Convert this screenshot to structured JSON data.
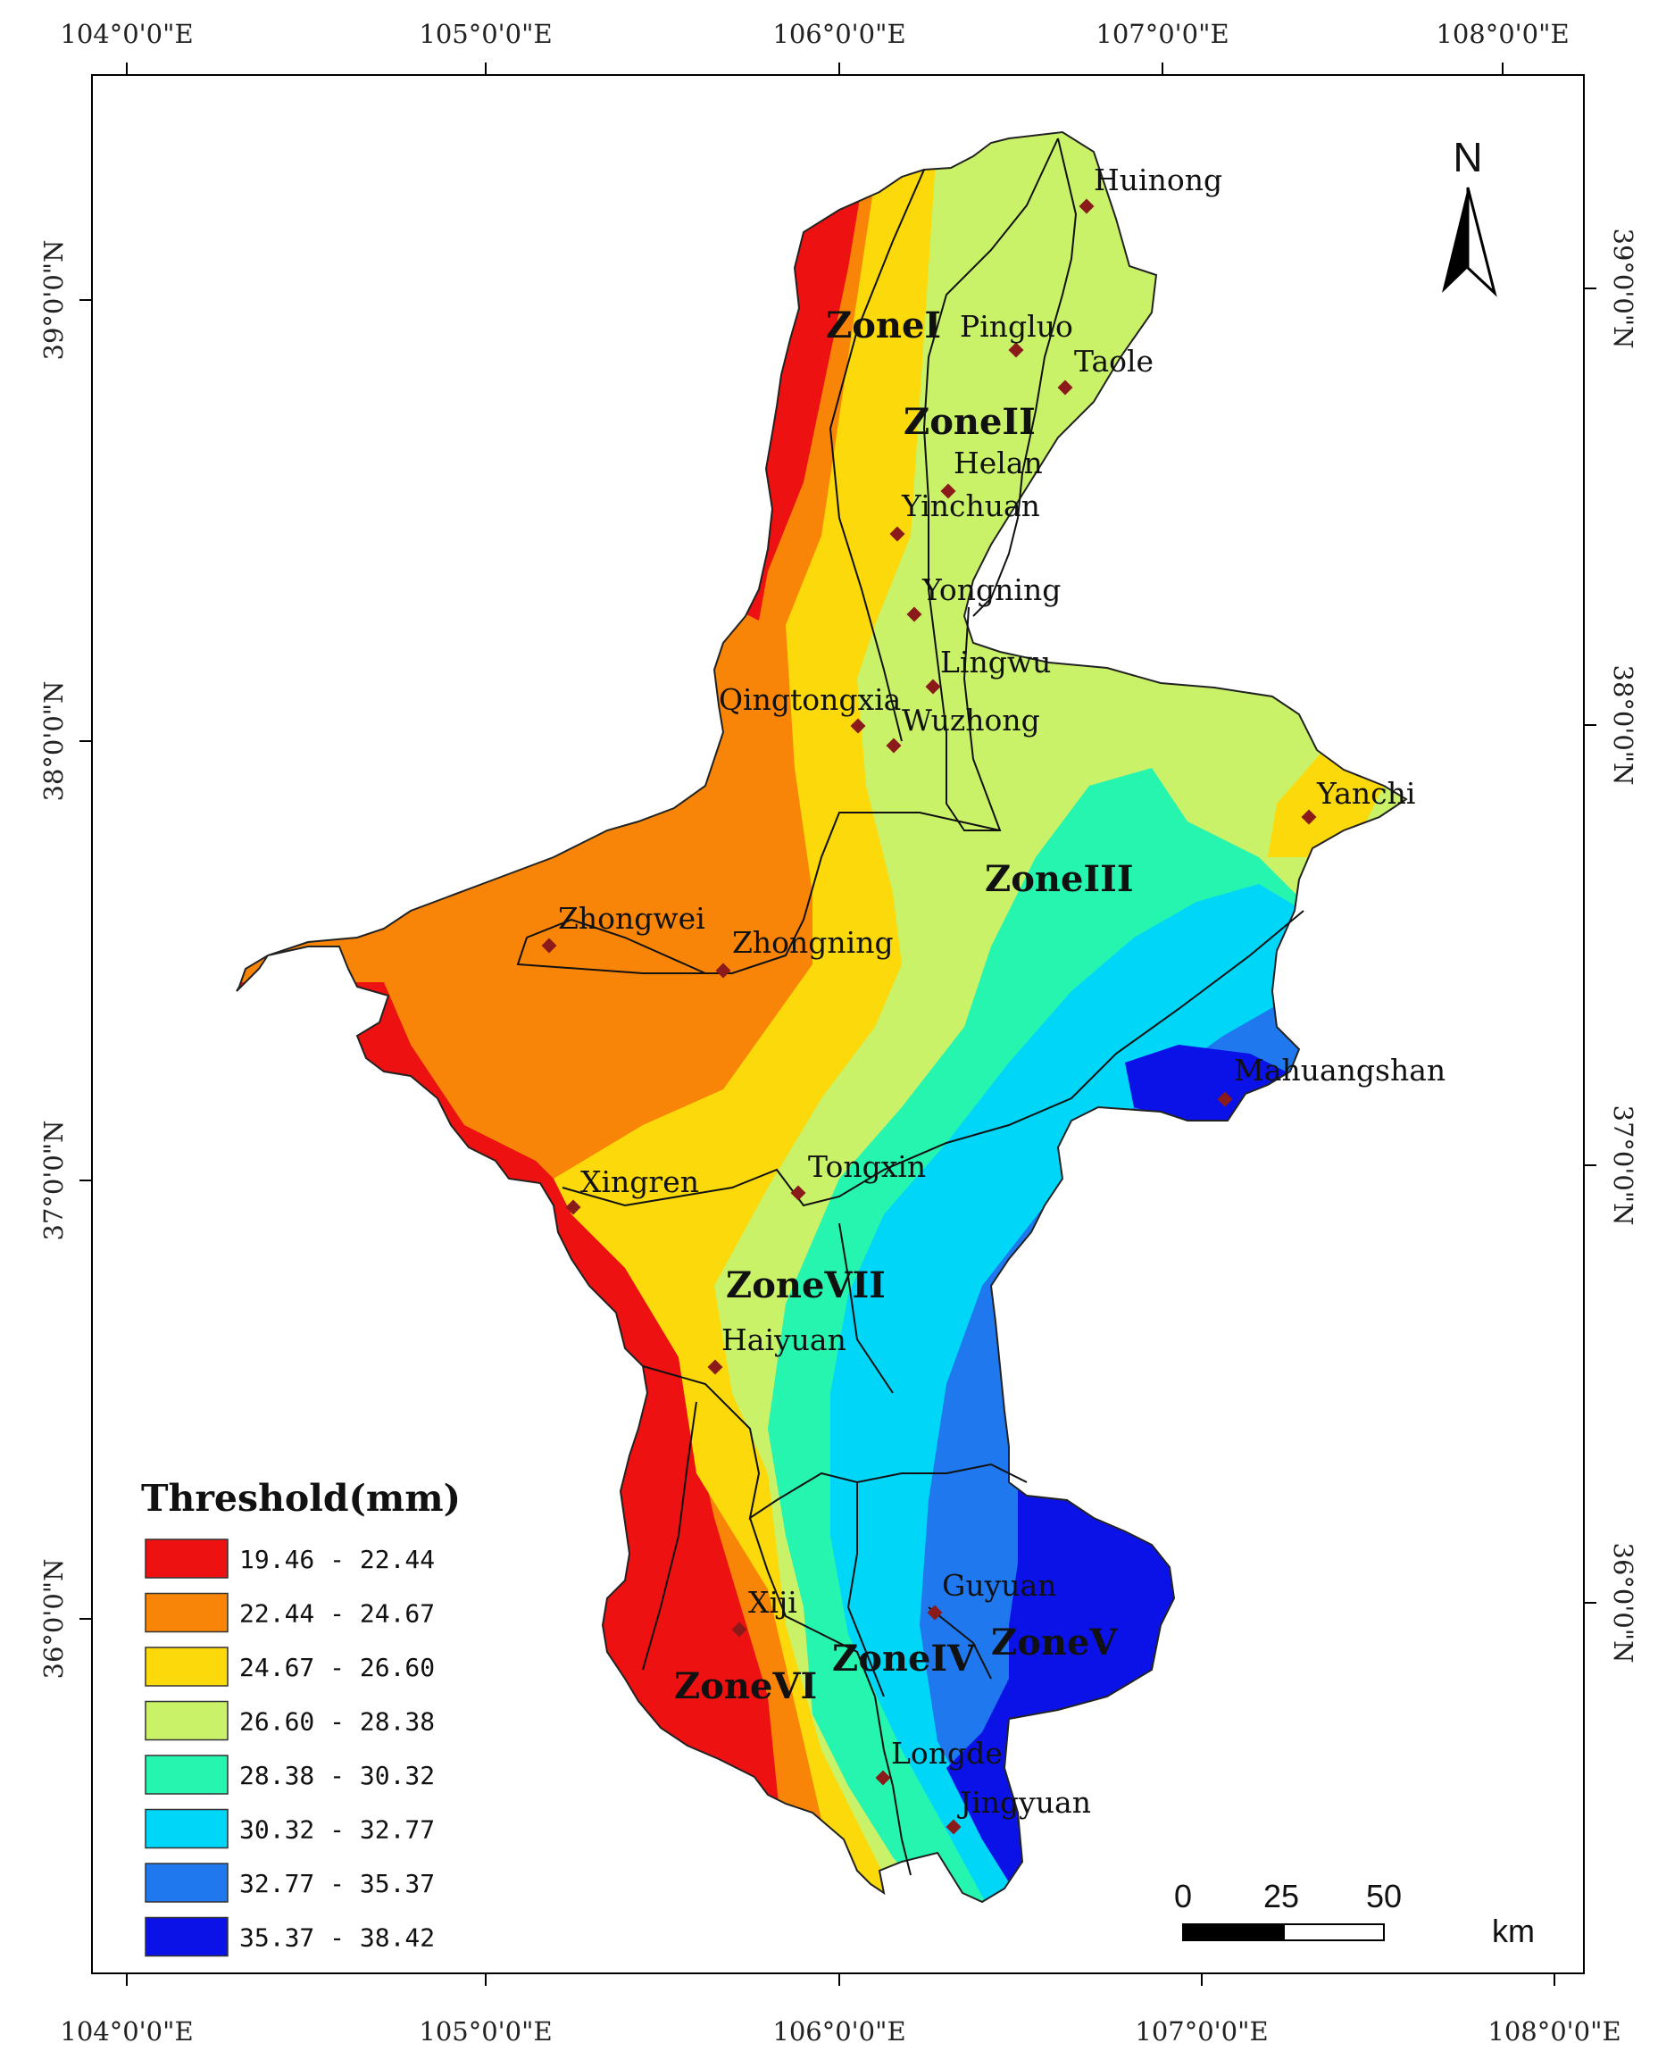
{
  "axes": {
    "top_ticks": [
      "104°0'0\"E",
      "105°0'0\"E",
      "106°0'0\"E",
      "107°0'0\"E",
      "108°0'0\"E"
    ],
    "bottom_ticks": [
      "104°0'0\"E",
      "105°0'0\"E",
      "106°0'0\"E",
      "107°0'0\"E",
      "108°0'0\"E"
    ],
    "left_ticks": [
      "39°0'0\"N",
      "38°0'0\"N",
      "37°0'0\"N",
      "36°0'0\"N"
    ],
    "right_ticks": [
      "39°0'0\"N",
      "38°0'0\"N",
      "37°0'0\"N",
      "36°0'0\"N"
    ]
  },
  "north_arrow": {
    "label": "N",
    "icon": "north-arrow-icon"
  },
  "zones": [
    "ZoneI",
    "ZoneII",
    "ZoneIII",
    "ZoneIV",
    "ZoneV",
    "ZoneVI",
    "ZoneVII"
  ],
  "cities": [
    "Huinong",
    "Pingluo",
    "Taole",
    "Helan",
    "Yinchuan",
    "Yongning",
    "Lingwu",
    "Qingtongxia",
    "Wuzhong",
    "Yanchi",
    "Zhongwei",
    "Zhongning",
    "Mahuangshan",
    "Tongxin",
    "Xingren",
    "Haiyuan",
    "Guyuan",
    "Xiji",
    "Longde",
    "Jingyuan"
  ],
  "legend": {
    "title": "Threshold(mm)",
    "classes": [
      {
        "label": "19.46 - 22.44",
        "color": "#ee1111"
      },
      {
        "label": "22.44 - 24.67",
        "color": "#f98508"
      },
      {
        "label": "24.67 - 26.60",
        "color": "#fcd90a"
      },
      {
        "label": "26.60 - 28.38",
        "color": "#c9f269"
      },
      {
        "label": "28.38 - 30.32",
        "color": "#26f5b0"
      },
      {
        "label": "30.32 - 32.77",
        "color": "#00d6f8"
      },
      {
        "label": "32.77 - 35.37",
        "color": "#1f78ee"
      },
      {
        "label": "35.37 - 38.42",
        "color": "#0a12e8"
      }
    ]
  },
  "scale_bar": {
    "ticks": [
      "0",
      "25",
      "50"
    ],
    "unit": "km"
  },
  "colors": {
    "station_marker": "#8b1a1a",
    "frame": "#000000"
  }
}
